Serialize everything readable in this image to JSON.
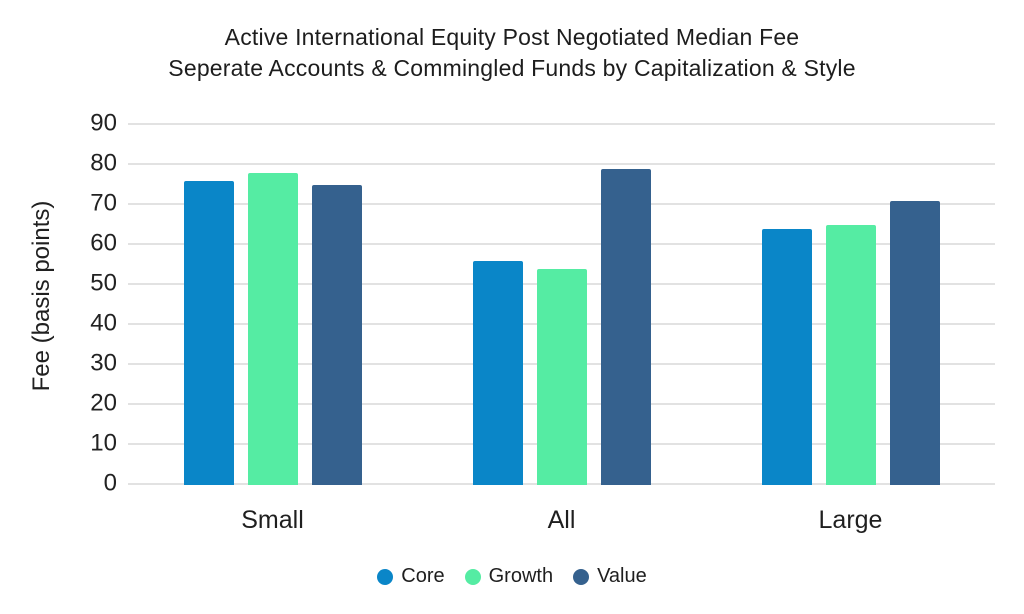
{
  "chart_data": {
    "type": "bar",
    "title": "Active International Equity Post Negotiated Median Fee",
    "subtitle": "Seperate Accounts & Commingled Funds by Capitalization & Style",
    "categories": [
      "Small",
      "All",
      "Large"
    ],
    "series": [
      {
        "name": "Core",
        "color": "#0a86c8",
        "values": [
          76,
          56,
          64
        ]
      },
      {
        "name": "Growth",
        "color": "#55eca3",
        "values": [
          78,
          54,
          65
        ]
      },
      {
        "name": "Value",
        "color": "#35618e",
        "values": [
          75,
          79,
          71
        ]
      }
    ],
    "xlabel": "",
    "ylabel": "Fee (basis points)",
    "ylim": [
      0,
      90
    ],
    "yticks": [
      0,
      10,
      20,
      30,
      40,
      50,
      60,
      70,
      80,
      90
    ],
    "grid": true,
    "legend_position": "bottom",
    "background_color": "#ffffff",
    "gridline_color": "#e2e2e2",
    "text_color": "#202020"
  }
}
